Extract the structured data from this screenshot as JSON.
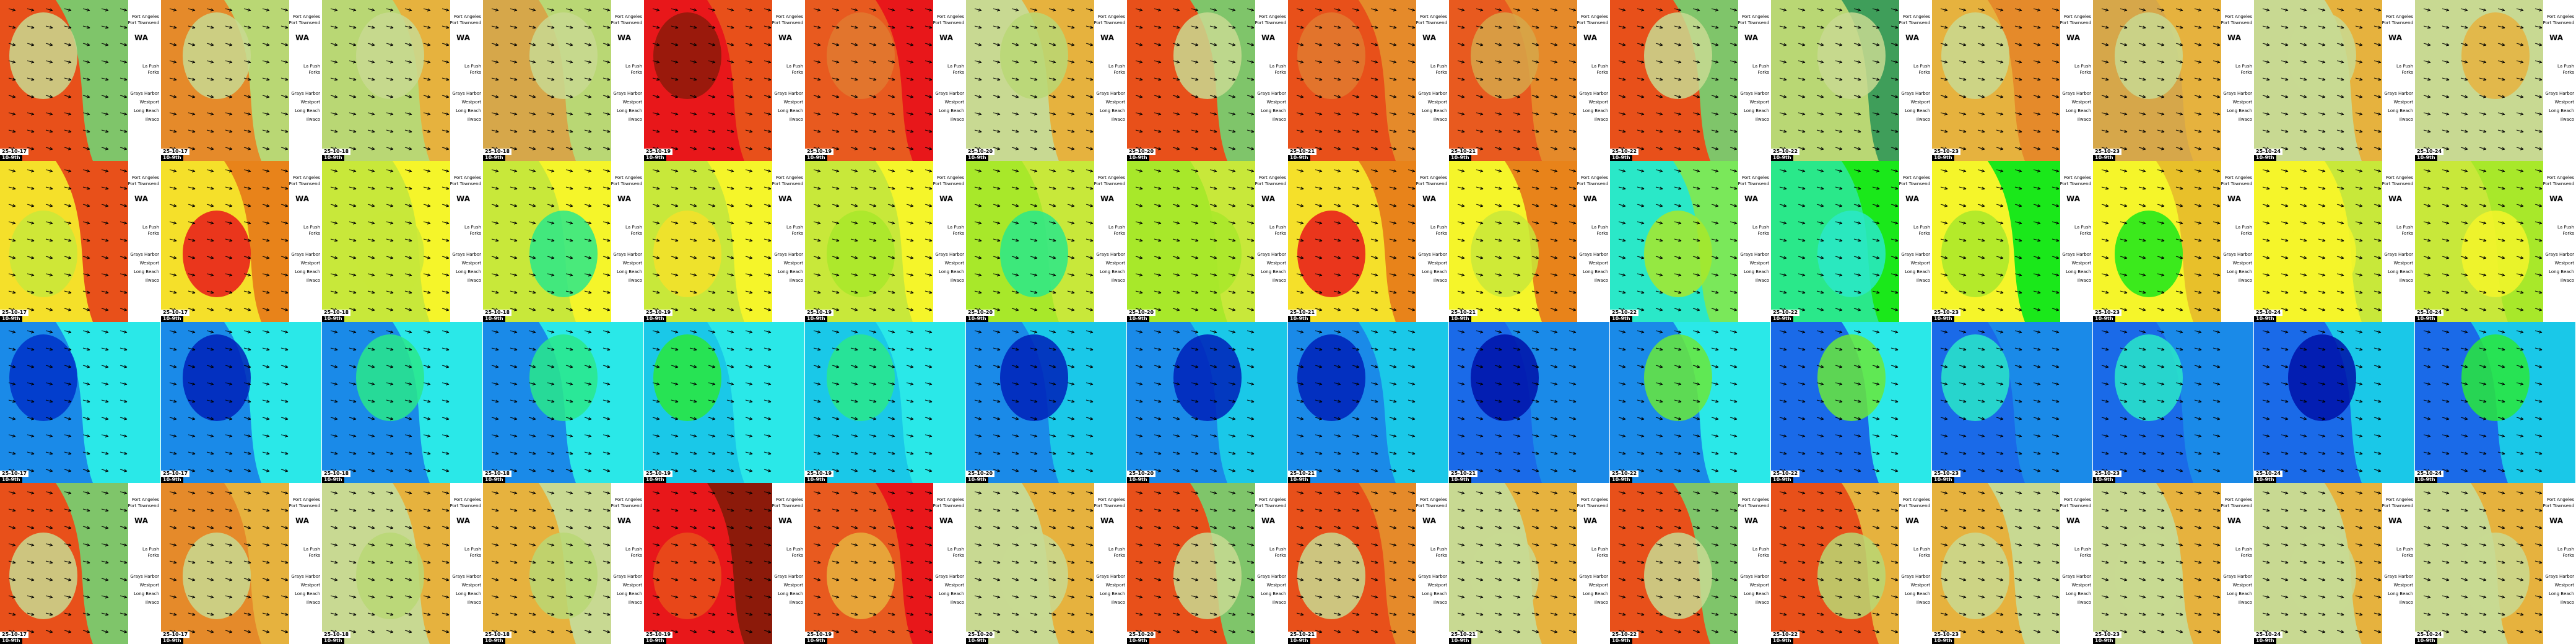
{
  "region_label": "WA",
  "town_labels": [
    "Port Angeles",
    "Port Townsend",
    "La Push",
    "Forks",
    "Grays Harbor",
    "Westport",
    "Long Beach",
    "Ilwaco"
  ],
  "columns": [
    {
      "date": "25-10-17",
      "time": "10-9th"
    },
    {
      "date": "25-10-17",
      "time": "10-9th"
    },
    {
      "date": "25-10-18",
      "time": "10-9th"
    },
    {
      "date": "25-10-18",
      "time": "10-9th"
    },
    {
      "date": "25-10-19",
      "time": "10-9th"
    },
    {
      "date": "25-10-19",
      "time": "10-9th"
    },
    {
      "date": "25-10-20",
      "time": "10-9th"
    },
    {
      "date": "25-10-20",
      "time": "10-9th"
    },
    {
      "date": "25-10-21",
      "time": "10-9th"
    },
    {
      "date": "25-10-21",
      "time": "10-9th"
    },
    {
      "date": "25-10-22",
      "time": "10-9th"
    },
    {
      "date": "25-10-22",
      "time": "10-9th"
    },
    {
      "date": "25-10-23",
      "time": "10-9th"
    },
    {
      "date": "25-10-23",
      "time": "10-9th"
    },
    {
      "date": "25-10-24",
      "time": "10-9th"
    },
    {
      "date": "25-10-24",
      "time": "10-9th"
    }
  ],
  "rows": [
    {
      "key": "wave-height",
      "colors": [
        [
          "#e8501a",
          "#7fc56a",
          "#c8d992"
        ],
        [
          "#e58a2a",
          "#b9d774",
          "#c8d992"
        ],
        [
          "#b9d774",
          "#e6b23e",
          "#c8d992"
        ],
        [
          "#d6a74a",
          "#b9d774",
          "#c8d992"
        ],
        [
          "#e8171a",
          "#e8501a",
          "#8c1a0a"
        ],
        [
          "#e85a1f",
          "#e8171a",
          "#e07a30"
        ],
        [
          "#c8d992",
          "#e6b23e",
          "#b9d774"
        ],
        [
          "#e8501a",
          "#7fc56a",
          "#c8d992"
        ],
        [
          "#e8501a",
          "#e58a2a",
          "#e07a30"
        ],
        [
          "#e85a1f",
          "#e58a2a",
          "#d6a74a"
        ],
        [
          "#e8501a",
          "#7fc56a",
          "#c8d992"
        ],
        [
          "#b9d774",
          "#3f9e5a",
          "#c8d992"
        ],
        [
          "#e6b23e",
          "#e58a2a",
          "#c8d992"
        ],
        [
          "#d6a74a",
          "#e6b23e",
          "#c8d992"
        ],
        [
          "#c8d992",
          "#e6b23e",
          "#c8d992"
        ],
        [
          "#c8d992",
          "#c8d992",
          "#e6b23e"
        ]
      ]
    },
    {
      "key": "wave-period",
      "colors": [
        [
          "#f5e02a",
          "#e8501a",
          "#c8e83a"
        ],
        [
          "#f5e02a",
          "#e8831a",
          "#e8171a"
        ],
        [
          "#c8e83a",
          "#f5f52a",
          "#c8e83a"
        ],
        [
          "#c8e83a",
          "#f5f52a",
          "#2ae88a"
        ],
        [
          "#c8e83a",
          "#f5f52a",
          "#f5e02a"
        ],
        [
          "#c8e83a",
          "#f5f52a",
          "#a8e82a"
        ],
        [
          "#a8e82a",
          "#c8e83a",
          "#2ae88a"
        ],
        [
          "#a8e82a",
          "#c8e83a",
          "#a8e82a"
        ],
        [
          "#f5e02a",
          "#e8831a",
          "#e8171a"
        ],
        [
          "#f5f52a",
          "#e8831a",
          "#c8e83a"
        ],
        [
          "#2ae8c8",
          "#7ae85a",
          "#a8e82a"
        ],
        [
          "#2ae88a",
          "#1ae81a",
          "#2ae8c8"
        ],
        [
          "#f5f52a",
          "#1ae81a",
          "#a8e82a"
        ],
        [
          "#f5f52a",
          "#e8c02a",
          "#1ae81a"
        ],
        [
          "#f5f52a",
          "#c8e83a",
          "#f5f52a"
        ],
        [
          "#c8e83a",
          "#a8e82a",
          "#f5f52a"
        ]
      ]
    },
    {
      "key": "surface-current",
      "colors": [
        [
          "#1a8ae8",
          "#2ae8e8",
          "#0030c8"
        ],
        [
          "#1a8ae8",
          "#2ae8e8",
          "#0020b8"
        ],
        [
          "#1a8ae8",
          "#2ae8e8",
          "#2ae88a"
        ],
        [
          "#1a8ae8",
          "#2ae8e8",
          "#2ae88a"
        ],
        [
          "#1ac8e8",
          "#2ae8e8",
          "#2ae83a"
        ],
        [
          "#1ac8e8",
          "#2ae8e8",
          "#2ae88a"
        ],
        [
          "#1a8ae8",
          "#1ac8e8",
          "#0020b8"
        ],
        [
          "#1a8ae8",
          "#1ac8e8",
          "#0020b8"
        ],
        [
          "#1a8ae8",
          "#1ac8e8",
          "#0020b8"
        ],
        [
          "#1a6ae8",
          "#1a8ae8",
          "#0010a8"
        ],
        [
          "#1a8ae8",
          "#2ae8e8",
          "#6ae83a"
        ],
        [
          "#1a6ae8",
          "#2ae8e8",
          "#6ae83a"
        ],
        [
          "#1a6ae8",
          "#1a8ae8",
          "#2ae8c8"
        ],
        [
          "#1a6ae8",
          "#1a8ae8",
          "#2ae8c8"
        ],
        [
          "#1a6ae8",
          "#1ac8e8",
          "#0010a8"
        ],
        [
          "#1a6ae8",
          "#1ac8e8",
          "#2ae83a"
        ]
      ]
    },
    {
      "key": "swell-height",
      "colors": [
        [
          "#e8501a",
          "#7fc56a",
          "#c8d992"
        ],
        [
          "#e58a2a",
          "#e6b23e",
          "#c8d992"
        ],
        [
          "#c8d992",
          "#e6b23e",
          "#b9d774"
        ],
        [
          "#e6b23e",
          "#c8d992",
          "#b9d774"
        ],
        [
          "#e8171a",
          "#8c1a0a",
          "#e8501a"
        ],
        [
          "#e85a1f",
          "#e8171a",
          "#e6b23e"
        ],
        [
          "#c8d992",
          "#e6b23e",
          "#c8d992"
        ],
        [
          "#e8501a",
          "#7fc56a",
          "#c8d992"
        ],
        [
          "#e8501a",
          "#e58a2a",
          "#c8d992"
        ],
        [
          "#c8d992",
          "#e6b23e",
          "#c8d992"
        ],
        [
          "#e8501a",
          "#7fc56a",
          "#c8d992"
        ],
        [
          "#e8501a",
          "#e6b23e",
          "#b9d774"
        ],
        [
          "#e6b23e",
          "#c8d992",
          "#c8d992"
        ],
        [
          "#c8d992",
          "#e6b23e",
          "#c8d992"
        ],
        [
          "#c8d992",
          "#e6b23e",
          "#c8d992"
        ],
        [
          "#c8d992",
          "#e6b23e",
          "#c8d992"
        ]
      ]
    }
  ]
}
